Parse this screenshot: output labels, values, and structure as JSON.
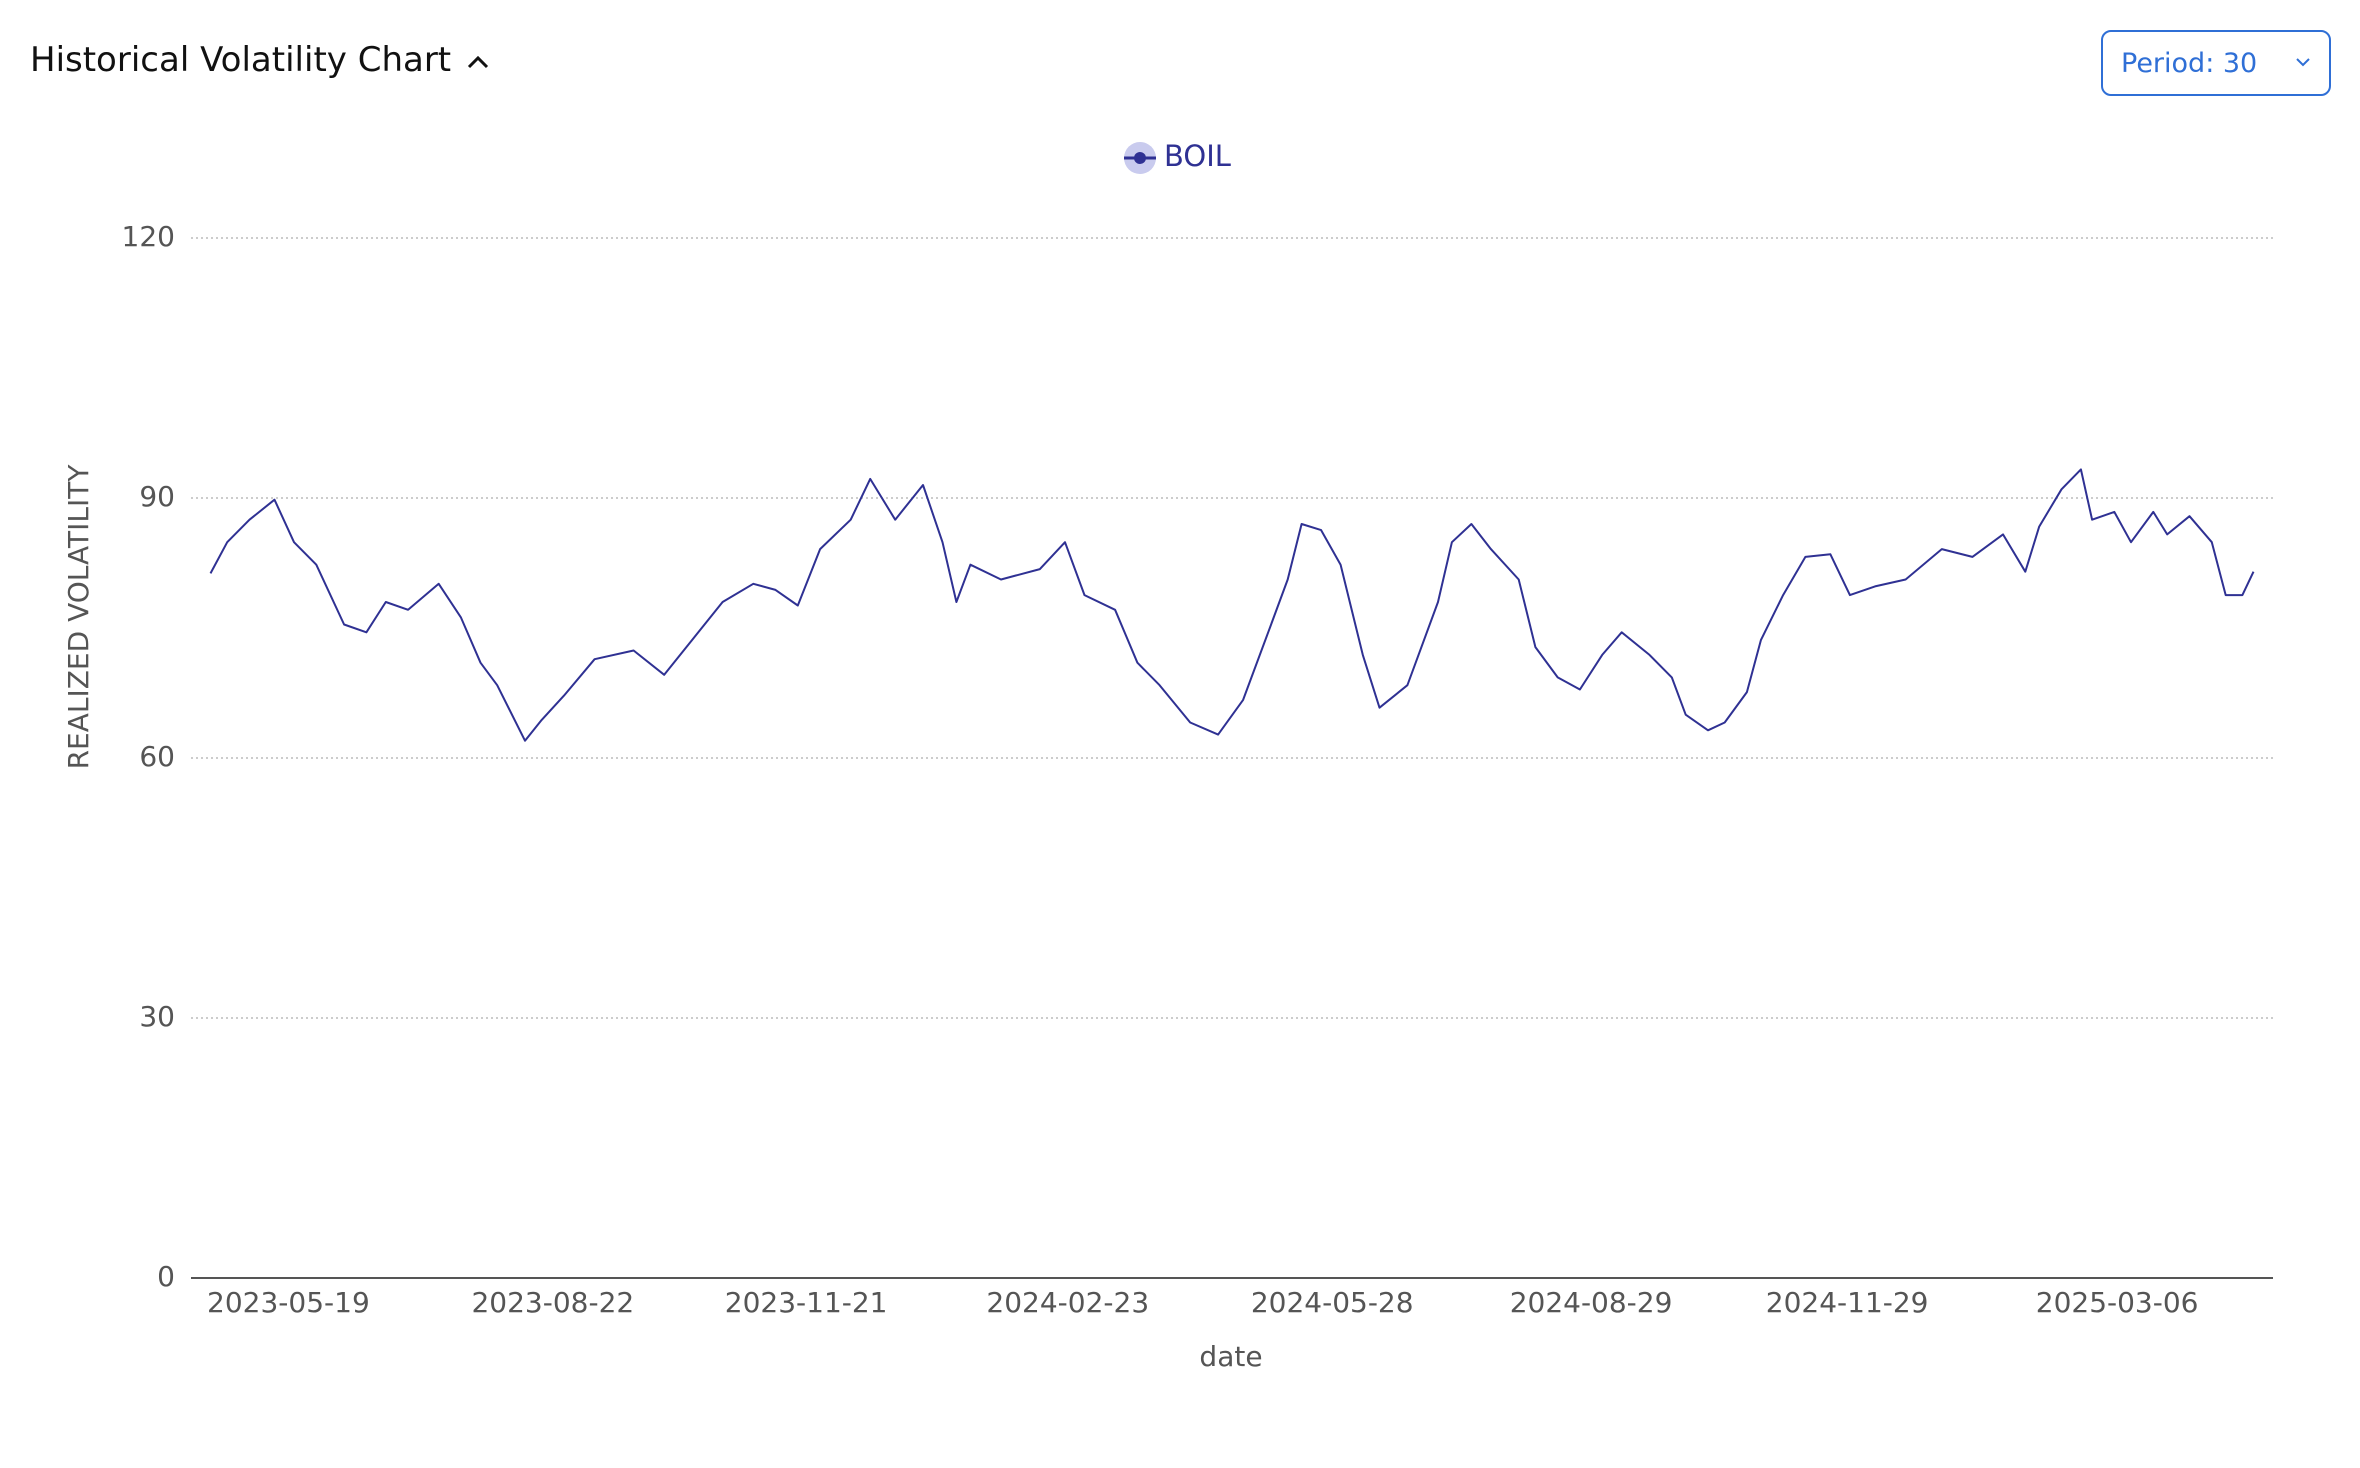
{
  "header": {
    "title": "Historical Volatility Chart"
  },
  "controls": {
    "period": "Period: 30"
  },
  "chart_data": {
    "type": "line",
    "x_label": "date",
    "y_label": "REALIZED VOLATILITY",
    "x": [
      "2023-04-21",
      "2023-04-27",
      "2023-05-05",
      "2023-05-14",
      "2023-05-21",
      "2023-05-29",
      "2023-06-08",
      "2023-06-16",
      "2023-06-23",
      "2023-07-01",
      "2023-07-12",
      "2023-07-20",
      "2023-07-27",
      "2023-08-02",
      "2023-08-12",
      "2023-08-18",
      "2023-08-26",
      "2023-09-06",
      "2023-09-20",
      "2023-10-01",
      "2023-10-11",
      "2023-10-22",
      "2023-11-02",
      "2023-11-10",
      "2023-11-18",
      "2023-11-26",
      "2023-12-07",
      "2023-12-14",
      "2023-12-23",
      "2024-01-02",
      "2024-01-09",
      "2024-01-14",
      "2024-01-19",
      "2024-01-30",
      "2024-02-13",
      "2024-02-22",
      "2024-02-29",
      "2024-03-11",
      "2024-03-19",
      "2024-03-27",
      "2024-04-07",
      "2024-04-17",
      "2024-04-26",
      "2024-05-05",
      "2024-05-12",
      "2024-05-17",
      "2024-05-24",
      "2024-05-31",
      "2024-06-08",
      "2024-06-14",
      "2024-06-24",
      "2024-07-05",
      "2024-07-10",
      "2024-07-17",
      "2024-07-24",
      "2024-08-03",
      "2024-08-09",
      "2024-08-17",
      "2024-08-25",
      "2024-09-02",
      "2024-09-09",
      "2024-09-19",
      "2024-09-27",
      "2024-10-02",
      "2024-10-10",
      "2024-10-16",
      "2024-10-24",
      "2024-10-29",
      "2024-11-06",
      "2024-11-14",
      "2024-11-23",
      "2024-11-30",
      "2024-12-09",
      "2024-12-20",
      "2025-01-02",
      "2025-01-13",
      "2025-01-24",
      "2025-02-01",
      "2025-02-06",
      "2025-02-14",
      "2025-02-21",
      "2025-02-25",
      "2025-03-05",
      "2025-03-11",
      "2025-03-19",
      "2025-03-24",
      "2025-04-01",
      "2025-04-09",
      "2025-04-14",
      "2025-04-20",
      "2025-04-24"
    ],
    "series": [
      {
        "name": "BOIL",
        "color": "#2f3193",
        "values": [
          81.3,
          84.9,
          87.5,
          89.8,
          84.9,
          82.3,
          75.4,
          74.5,
          78.0,
          77.1,
          80.1,
          76.2,
          71.0,
          68.4,
          62.0,
          64.4,
          67.2,
          71.4,
          72.4,
          69.6,
          73.6,
          78.0,
          80.1,
          79.4,
          77.6,
          84.1,
          87.5,
          92.2,
          87.5,
          91.5,
          84.9,
          78.0,
          82.3,
          80.6,
          81.8,
          84.9,
          78.8,
          77.1,
          71.0,
          68.4,
          64.1,
          62.7,
          66.7,
          74.5,
          80.6,
          87.0,
          86.3,
          82.3,
          71.9,
          65.8,
          68.4,
          78.0,
          84.9,
          87.0,
          84.1,
          80.6,
          72.8,
          69.3,
          67.9,
          71.9,
          74.5,
          71.9,
          69.3,
          65.0,
          63.2,
          64.1,
          67.6,
          73.6,
          78.8,
          83.2,
          83.5,
          78.8,
          79.8,
          80.6,
          84.1,
          83.2,
          85.8,
          81.5,
          86.7,
          91.0,
          93.3,
          87.5,
          88.4,
          84.9,
          88.4,
          85.8,
          87.9,
          84.9,
          78.8,
          78.8,
          81.5
        ]
      }
    ],
    "xlim": [
      "2023-04-14",
      "2025-05-01"
    ],
    "xticks": [
      "2023-05-19",
      "2023-08-22",
      "2023-11-21",
      "2024-02-23",
      "2024-05-28",
      "2024-08-29",
      "2024-11-29",
      "2025-03-06"
    ],
    "ylim": [
      0,
      120
    ],
    "yticks": [
      0,
      30,
      60,
      90,
      120
    ],
    "grid": true
  }
}
